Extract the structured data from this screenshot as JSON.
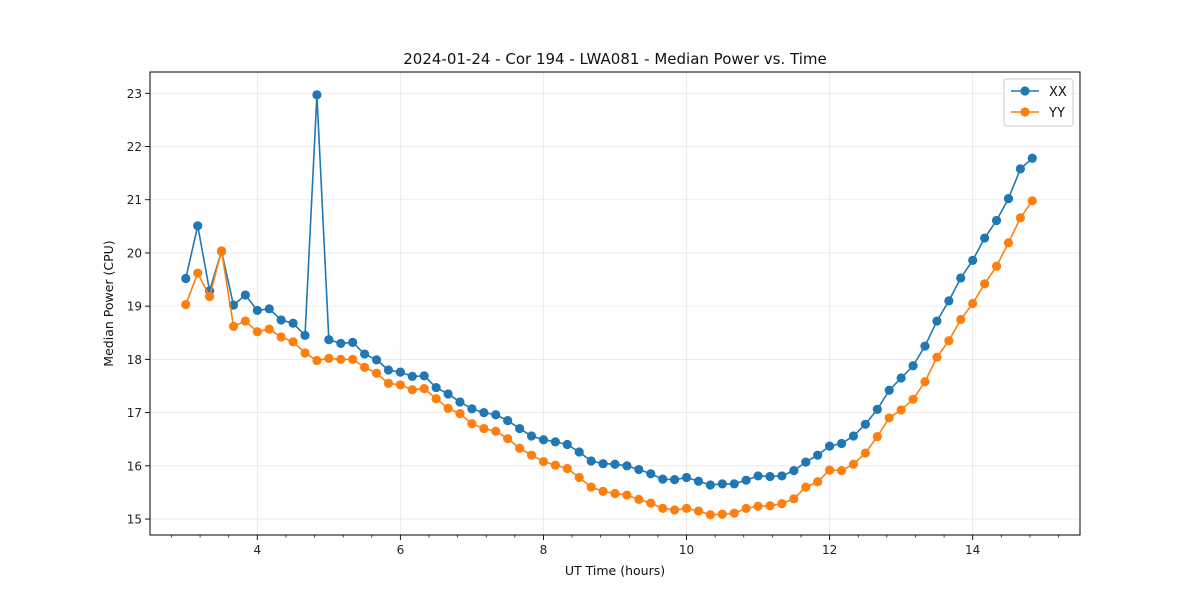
{
  "chart_data": {
    "type": "line",
    "title": "2024-01-24 - Cor 194 - LWA081 - Median Power vs. Time",
    "xlabel": "UT Time (hours)",
    "ylabel": "Median Power (CPU)",
    "xlim": [
      2.5,
      15.5
    ],
    "ylim": [
      14.7,
      23.4
    ],
    "xticks": [
      4,
      6,
      8,
      10,
      12,
      14
    ],
    "xtick_labels": [
      "4",
      "6",
      "8",
      "10",
      "12",
      "14"
    ],
    "yticks": [
      15,
      16,
      17,
      18,
      19,
      20,
      21,
      22,
      23
    ],
    "ytick_labels": [
      "15",
      "16",
      "17",
      "18",
      "19",
      "20",
      "21",
      "22",
      "23"
    ],
    "grid": true,
    "legend_position": "top-right",
    "x": [
      3.0,
      3.167,
      3.333,
      3.5,
      3.667,
      3.833,
      4.0,
      4.167,
      4.333,
      4.5,
      4.667,
      4.833,
      5.0,
      5.167,
      5.333,
      5.5,
      5.667,
      5.833,
      6.0,
      6.167,
      6.333,
      6.5,
      6.667,
      6.833,
      7.0,
      7.167,
      7.333,
      7.5,
      7.667,
      7.833,
      8.0,
      8.167,
      8.333,
      8.5,
      8.667,
      8.833,
      9.0,
      9.167,
      9.333,
      9.5,
      9.667,
      9.833,
      10.0,
      10.167,
      10.333,
      10.5,
      10.667,
      10.833,
      11.0,
      11.167,
      11.333,
      11.5,
      11.667,
      11.833,
      12.0,
      12.167,
      12.333,
      12.5,
      12.667,
      12.833,
      13.0,
      13.167,
      13.333,
      13.5,
      13.667,
      13.833,
      14.0,
      14.167,
      14.333,
      14.5,
      14.667,
      14.833
    ],
    "series": [
      {
        "name": "XX",
        "color": "#1f77b4",
        "values": [
          19.52,
          20.51,
          19.29,
          20.03,
          19.02,
          19.21,
          18.92,
          18.95,
          18.74,
          18.68,
          18.45,
          22.97,
          18.37,
          18.3,
          18.32,
          18.1,
          17.99,
          17.8,
          17.76,
          17.68,
          17.69,
          17.47,
          17.35,
          17.2,
          17.07,
          17.0,
          16.96,
          16.85,
          16.7,
          16.56,
          16.49,
          16.45,
          16.4,
          16.26,
          16.09,
          16.04,
          16.03,
          16.0,
          15.93,
          15.85,
          15.75,
          15.74,
          15.78,
          15.71,
          15.64,
          15.66,
          15.66,
          15.73,
          15.81,
          15.8,
          15.81,
          15.91,
          16.07,
          16.2,
          16.37,
          16.42,
          16.56,
          16.78,
          17.06,
          17.42,
          17.65,
          17.88,
          18.25,
          18.72,
          19.1,
          19.53,
          19.86,
          20.28,
          20.61,
          21.02,
          21.58,
          21.78
        ]
      },
      {
        "name": "YY",
        "color": "#ff7f0e",
        "values": [
          19.03,
          19.62,
          19.18,
          20.04,
          18.62,
          18.72,
          18.52,
          18.57,
          18.42,
          18.33,
          18.12,
          17.98,
          18.02,
          18.0,
          18.0,
          17.85,
          17.74,
          17.55,
          17.52,
          17.43,
          17.45,
          17.26,
          17.08,
          16.98,
          16.79,
          16.7,
          16.65,
          16.51,
          16.33,
          16.2,
          16.08,
          16.01,
          15.95,
          15.78,
          15.6,
          15.52,
          15.48,
          15.45,
          15.37,
          15.3,
          15.2,
          15.17,
          15.2,
          15.15,
          15.08,
          15.09,
          15.11,
          15.2,
          15.24,
          15.25,
          15.29,
          15.38,
          15.6,
          15.7,
          15.92,
          15.91,
          16.03,
          16.24,
          16.55,
          16.9,
          17.05,
          17.25,
          17.58,
          18.04,
          18.35,
          18.75,
          19.05,
          19.42,
          19.75,
          20.19,
          20.66,
          20.98
        ]
      }
    ]
  }
}
